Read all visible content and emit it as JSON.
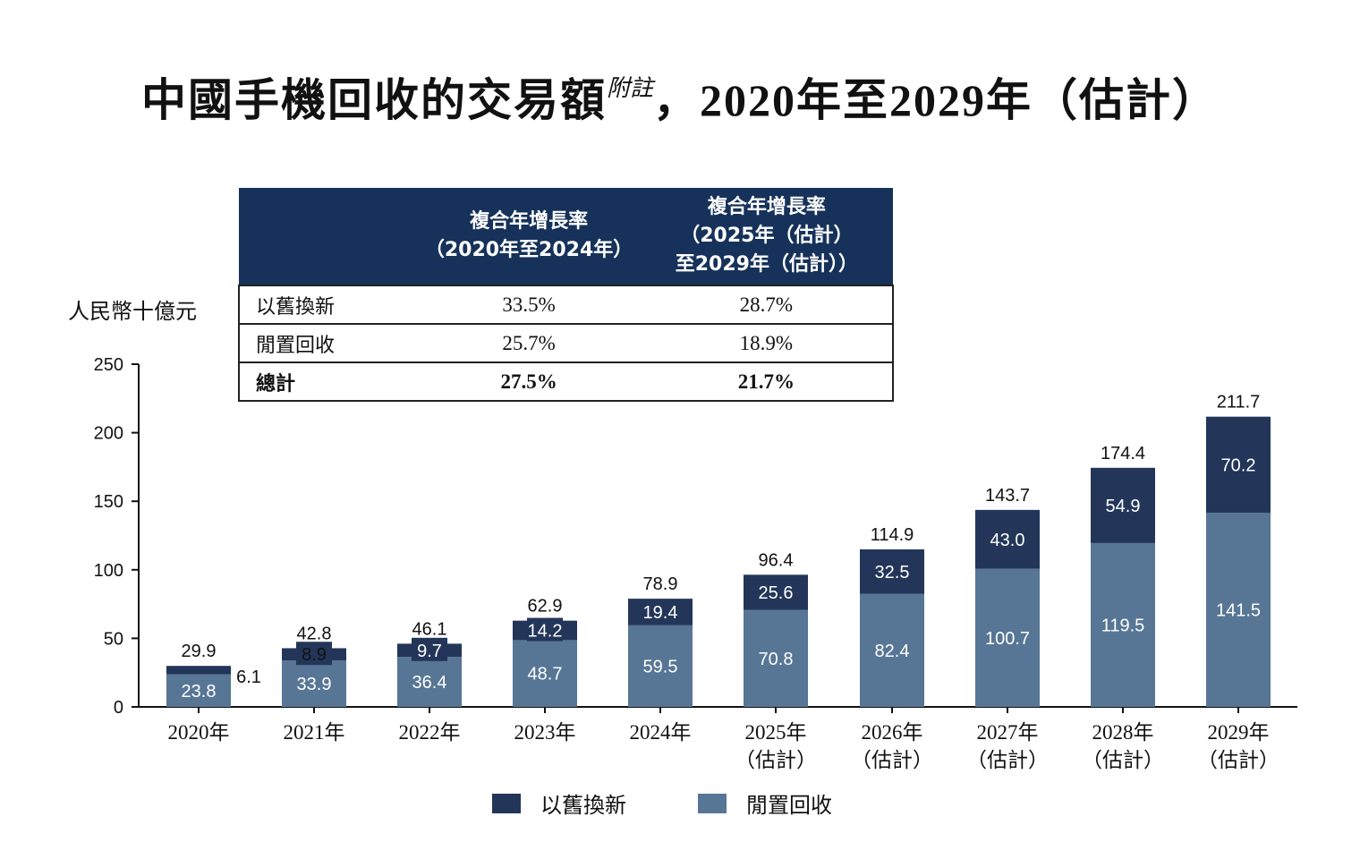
{
  "title": {
    "main": "中國手機回收的交易額",
    "superscript": "附註",
    "comma": "，",
    "year_from": "2020",
    "nian1": "年至",
    "year_to": "2029",
    "nian2": "年",
    "est": "（估計）"
  },
  "unit_label": "人民幣十億元",
  "cagr_table": {
    "headers": [
      "",
      "複合年增長率\n（2020年至2024年）",
      "複合年增長率\n（2025年（估計）\n至2029年（估計））"
    ],
    "rows": [
      {
        "label": "以舊換新",
        "v1": "33.5%",
        "v2": "28.7%"
      },
      {
        "label": "閒置回收",
        "v1": "25.7%",
        "v2": "18.9%"
      },
      {
        "label": "總計",
        "v1": "27.5%",
        "v2": "21.7%"
      }
    ]
  },
  "legend": {
    "trade_in": "以舊換新",
    "idle": "閒置回收"
  },
  "colors": {
    "trade_in": "#233659",
    "idle": "#577695",
    "header_bg": "#16325a"
  },
  "chart_data": {
    "type": "bar",
    "stacked": true,
    "categories": [
      "2020年",
      "2021年",
      "2022年",
      "2023年",
      "2024年",
      "2025年\n（估計）",
      "2026年\n（估計）",
      "2027年\n（估計）",
      "2028年\n（估計）",
      "2029年\n（估計）"
    ],
    "series": [
      {
        "name": "閒置回收",
        "values": [
          23.8,
          33.9,
          36.4,
          48.7,
          59.5,
          70.8,
          82.4,
          100.7,
          119.5,
          141.5
        ]
      },
      {
        "name": "以舊換新",
        "values": [
          6.1,
          8.9,
          9.7,
          14.2,
          19.4,
          25.6,
          32.5,
          43.0,
          54.9,
          70.2
        ]
      }
    ],
    "totals": [
      29.9,
      42.8,
      46.1,
      62.9,
      78.9,
      96.4,
      114.9,
      143.7,
      174.4,
      211.7
    ],
    "ylim": [
      0,
      250
    ],
    "yticks": [
      0,
      50,
      100,
      150,
      200,
      250
    ],
    "ylabel": "人民幣十億元",
    "xlabel": "",
    "grid": false,
    "legend_position": "bottom"
  }
}
